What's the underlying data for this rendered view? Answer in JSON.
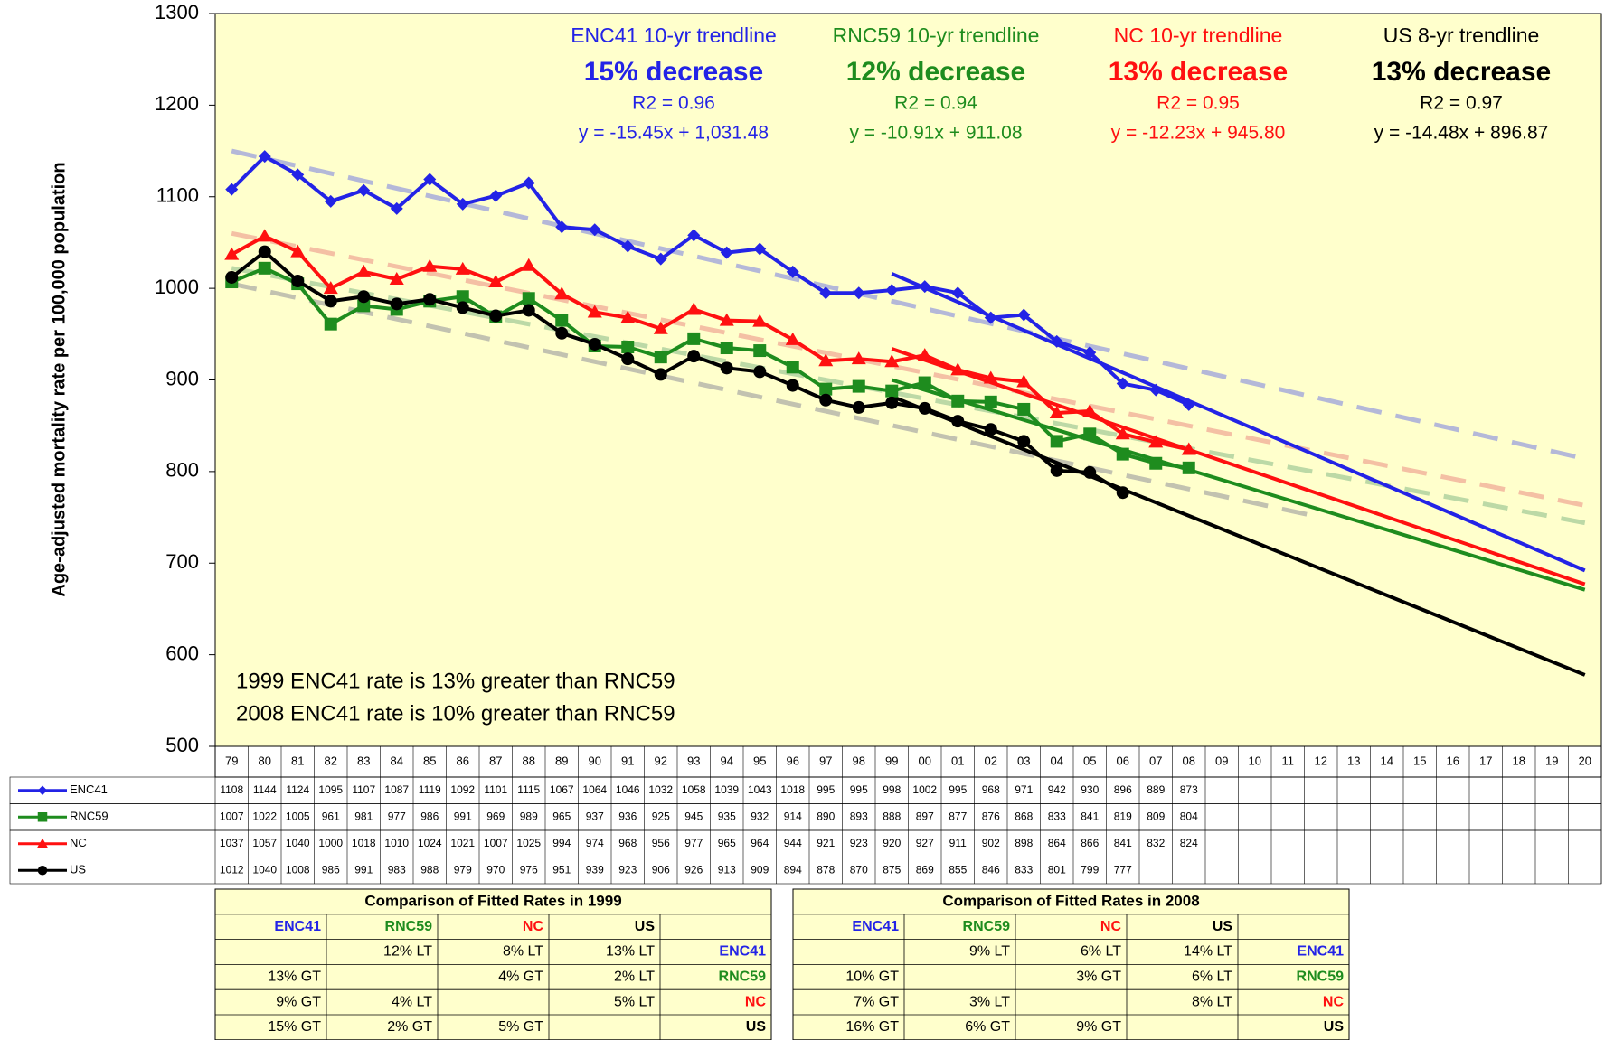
{
  "chart_data": {
    "type": "line",
    "y_label": "Age-adjusted  mortality rate per 100,000  population",
    "ylim": [
      500,
      1300
    ],
    "yticks": [
      500,
      600,
      700,
      800,
      900,
      1000,
      1100,
      1200,
      1300
    ],
    "categories": [
      "79",
      "80",
      "81",
      "82",
      "83",
      "84",
      "85",
      "86",
      "87",
      "88",
      "89",
      "90",
      "91",
      "92",
      "93",
      "94",
      "95",
      "96",
      "97",
      "98",
      "99",
      "00",
      "01",
      "02",
      "03",
      "04",
      "05",
      "06",
      "07",
      "08",
      "09",
      "10",
      "11",
      "12",
      "13",
      "14",
      "15",
      "16",
      "17",
      "18",
      "19",
      "20"
    ],
    "series": [
      {
        "name": "ENC41",
        "color": "#2323e6",
        "marker": "diamond",
        "values": [
          1108,
          1144,
          1124,
          1095,
          1107,
          1087,
          1119,
          1092,
          1101,
          1115,
          1067,
          1064,
          1046,
          1032,
          1058,
          1039,
          1043,
          1018,
          995,
          995,
          998,
          1002,
          995,
          968,
          971,
          942,
          930,
          896,
          889,
          873,
          null,
          null,
          null,
          null,
          null,
          null,
          null,
          null,
          null,
          null,
          null,
          null
        ],
        "projection": {
          "range": [
            "99",
            "20"
          ],
          "values": [
            1016,
            692
          ]
        },
        "trend": {
          "range": [
            "79",
            "20"
          ],
          "values": [
            1150,
            814
          ],
          "color": "#b4b8d8"
        }
      },
      {
        "name": "RNC59",
        "color": "#1e8c1e",
        "marker": "square",
        "values": [
          1007,
          1022,
          1005,
          961,
          981,
          977,
          986,
          991,
          969,
          989,
          965,
          937,
          936,
          925,
          945,
          935,
          932,
          914,
          890,
          893,
          888,
          897,
          877,
          876,
          868,
          833,
          841,
          819,
          809,
          804,
          null,
          null,
          null,
          null,
          null,
          null,
          null,
          null,
          null,
          null,
          null,
          null
        ],
        "projection": {
          "range": [
            "99",
            "20"
          ],
          "values": [
            900,
            671
          ]
        },
        "trend": {
          "range": [
            "79",
            "20"
          ],
          "values": [
            1022,
            744
          ],
          "color": "#bcd9a6"
        }
      },
      {
        "name": "NC",
        "color": "#ff1010",
        "marker": "triangle",
        "values": [
          1037,
          1057,
          1040,
          1000,
          1018,
          1010,
          1024,
          1021,
          1007,
          1025,
          994,
          974,
          968,
          956,
          977,
          965,
          964,
          944,
          921,
          923,
          920,
          927,
          911,
          902,
          898,
          864,
          866,
          841,
          832,
          824,
          null,
          null,
          null,
          null,
          null,
          null,
          null,
          null,
          null,
          null,
          null,
          null
        ],
        "projection": {
          "range": [
            "99",
            "20"
          ],
          "values": [
            934,
            677
          ]
        },
        "trend": {
          "range": [
            "79",
            "20"
          ],
          "values": [
            1060,
            763
          ],
          "color": "#f4c0a4"
        }
      },
      {
        "name": "US",
        "color": "#000000",
        "marker": "circle",
        "values": [
          1012,
          1040,
          1008,
          986,
          991,
          983,
          988,
          979,
          970,
          976,
          951,
          939,
          923,
          906,
          926,
          913,
          909,
          894,
          878,
          870,
          875,
          869,
          855,
          846,
          833,
          801,
          799,
          777,
          null,
          null,
          null,
          null,
          null,
          null,
          null,
          null,
          null,
          null,
          null,
          null,
          null,
          null
        ],
        "projection": {
          "range": [
            "99",
            "20"
          ],
          "values": [
            882,
            578
          ]
        },
        "trend": {
          "range": [
            "79",
            "12"
          ],
          "values": [
            1005,
            750
          ],
          "color": "#c2c2b0"
        }
      }
    ],
    "trend_notes": [
      {
        "title": "ENC41 10-yr trendline",
        "headline": "15% decrease",
        "r2": "R2 = 0.96",
        "equation": "y = -15.45x + 1,031.48",
        "color": "#2323e6"
      },
      {
        "title": "RNC59 10-yr trendline",
        "headline": "12% decrease",
        "r2": "R2 = 0.94",
        "equation": "y = -10.91x + 911.08",
        "color": "#1e8c1e"
      },
      {
        "title": "NC 10-yr trendline",
        "headline": "13% decrease",
        "r2": "R2 = 0.95",
        "equation": "y = -12.23x + 945.80",
        "color": "#ff1010"
      },
      {
        "title": "US 8-yr trendline",
        "headline": "13% decrease",
        "r2": "R2 = 0.97",
        "equation": "y = -14.48x + 896.87",
        "color": "#000000"
      }
    ],
    "annotations": [
      "1999 ENC41 rate is 13% greater than RNC59",
      "2008 ENC41 rate is 10% greater than RNC59"
    ],
    "comparisons": [
      {
        "title": "Comparison of Fitted Rates in 1999",
        "header": [
          "ENC41",
          "RNC59",
          "NC",
          "US"
        ],
        "rows": [
          [
            null,
            "12% LT",
            "8% LT",
            "13% LT",
            "ENC41"
          ],
          [
            "13% GT",
            null,
            "4% GT",
            "2% LT",
            "RNC59"
          ],
          [
            "9% GT",
            "4% LT",
            null,
            "5% LT",
            "NC"
          ],
          [
            "15% GT",
            "2% GT",
            "5% GT",
            null,
            "US"
          ]
        ]
      },
      {
        "title": "Comparison of Fitted Rates in 2008",
        "header": [
          "ENC41",
          "RNC59",
          "NC",
          "US"
        ],
        "rows": [
          [
            null,
            "9% LT",
            "6% LT",
            "14% LT",
            "ENC41"
          ],
          [
            "10% GT",
            null,
            "3% GT",
            "6% LT",
            "RNC59"
          ],
          [
            "7% GT",
            "3% LT",
            null,
            "8% LT",
            "NC"
          ],
          [
            "16% GT",
            "6% GT",
            "9% GT",
            null,
            "US"
          ]
        ]
      }
    ]
  }
}
